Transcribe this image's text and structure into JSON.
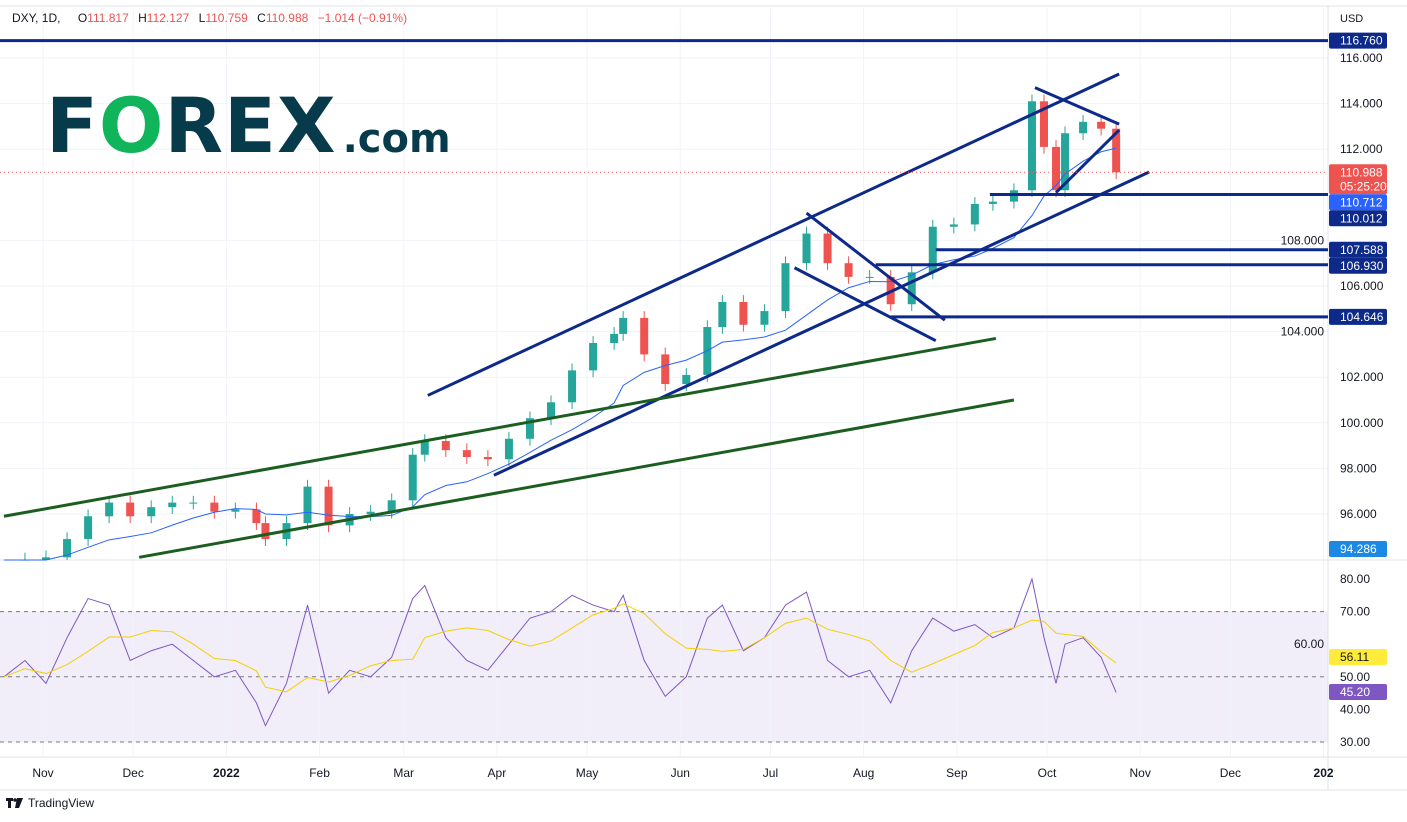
{
  "header": {
    "symbol": "DXY, 1D,",
    "open_label": "O",
    "open": "111.817",
    "high_label": "H",
    "high": "112.127",
    "low_label": "L",
    "low": "110.759",
    "close_label": "C",
    "close": "110.988",
    "change": "−1.014 (−0.91%)"
  },
  "logo": {
    "text_f": "F",
    "text_o": "O",
    "text_rex": "REX",
    "text_com": ".com"
  },
  "footer": {
    "brand": "TradingView"
  },
  "colors": {
    "up": "#26a69a",
    "down": "#ef5350",
    "line_blue": "#0d2a8a",
    "line_green": "#1b5e20",
    "ma": "#2962ff",
    "rsi": "#7e57c2",
    "rsi_ma": "#f5d000"
  },
  "chart_data": {
    "type": "candlestick",
    "currency_label": "USD",
    "price_ticks": [
      "116.000",
      "114.000",
      "112.000",
      "108.000",
      "106.000",
      "104.000",
      "102.000",
      "100.000",
      "98.000",
      "96.000"
    ],
    "price_ylim": [
      93.8,
      118.3
    ],
    "rsi_ticks": [
      "80.00",
      "70.00",
      "60.00",
      "50.00",
      "40.00",
      "30.00"
    ],
    "rsi_ylim": [
      28.9,
      80.5
    ],
    "x_ticks": [
      {
        "date": "2021-11-01",
        "label": "Nov"
      },
      {
        "date": "2021-12-01",
        "label": "Dec"
      },
      {
        "date": "2022-01-01",
        "label": "2022"
      },
      {
        "date": "2022-02-01",
        "label": "Feb"
      },
      {
        "date": "2022-03-01",
        "label": "Mar"
      },
      {
        "date": "2022-04-01",
        "label": "Apr"
      },
      {
        "date": "2022-05-01",
        "label": "May"
      },
      {
        "date": "2022-06-01",
        "label": "Jun"
      },
      {
        "date": "2022-07-01",
        "label": "Jul"
      },
      {
        "date": "2022-08-01",
        "label": "Aug"
      },
      {
        "date": "2022-09-01",
        "label": "Sep"
      },
      {
        "date": "2022-10-01",
        "label": "Oct"
      },
      {
        "date": "2022-11-01",
        "label": "Nov"
      },
      {
        "date": "2022-12-01",
        "label": "Dec"
      },
      {
        "date": "2023-01-01",
        "label": "202"
      }
    ],
    "series": [
      [
        "2021-10-19",
        93.8,
        50
      ],
      [
        "2021-10-26",
        94.0,
        55
      ],
      [
        "2021-11-02",
        94.1,
        48
      ],
      [
        "2021-11-09",
        94.9,
        62
      ],
      [
        "2021-11-16",
        95.9,
        74
      ],
      [
        "2021-11-23",
        96.5,
        72
      ],
      [
        "2021-11-30",
        95.9,
        55
      ],
      [
        "2021-12-07",
        96.3,
        58
      ],
      [
        "2021-12-14",
        96.5,
        60
      ],
      [
        "2021-12-21",
        96.5,
        55
      ],
      [
        "2021-12-28",
        96.1,
        50
      ],
      [
        "2022-01-04",
        96.2,
        52
      ],
      [
        "2022-01-11",
        95.6,
        42
      ],
      [
        "2022-01-14",
        94.9,
        35
      ],
      [
        "2022-01-21",
        95.6,
        48
      ],
      [
        "2022-01-28",
        97.2,
        72
      ],
      [
        "2022-02-04",
        95.5,
        45
      ],
      [
        "2022-02-11",
        96.0,
        52
      ],
      [
        "2022-02-18",
        96.1,
        50
      ],
      [
        "2022-02-25",
        96.6,
        56
      ],
      [
        "2022-03-04",
        98.6,
        74
      ],
      [
        "2022-03-08",
        99.2,
        78
      ],
      [
        "2022-03-15",
        98.8,
        62
      ],
      [
        "2022-03-22",
        98.5,
        55
      ],
      [
        "2022-03-29",
        98.4,
        52
      ],
      [
        "2022-04-05",
        99.3,
        60
      ],
      [
        "2022-04-12",
        100.2,
        68
      ],
      [
        "2022-04-19",
        100.9,
        70
      ],
      [
        "2022-04-26",
        102.3,
        75
      ],
      [
        "2022-05-03",
        103.5,
        72
      ],
      [
        "2022-05-10",
        103.9,
        70
      ],
      [
        "2022-05-13",
        104.6,
        75
      ],
      [
        "2022-05-20",
        103.0,
        55
      ],
      [
        "2022-05-27",
        101.7,
        44
      ],
      [
        "2022-06-03",
        102.1,
        50
      ],
      [
        "2022-06-10",
        104.2,
        68
      ],
      [
        "2022-06-15",
        105.3,
        72
      ],
      [
        "2022-06-22",
        104.3,
        58
      ],
      [
        "2022-06-29",
        104.9,
        62
      ],
      [
        "2022-07-06",
        107.0,
        72
      ],
      [
        "2022-07-13",
        108.3,
        76
      ],
      [
        "2022-07-20",
        107.0,
        55
      ],
      [
        "2022-07-27",
        106.4,
        50
      ],
      [
        "2022-08-03",
        106.4,
        52
      ],
      [
        "2022-08-10",
        105.2,
        42
      ],
      [
        "2022-08-17",
        106.6,
        58
      ],
      [
        "2022-08-24",
        108.6,
        68
      ],
      [
        "2022-08-31",
        108.7,
        64
      ],
      [
        "2022-09-07",
        109.6,
        66
      ],
      [
        "2022-09-13",
        109.7,
        62
      ],
      [
        "2022-09-20",
        110.2,
        65
      ],
      [
        "2022-09-26",
        114.1,
        80
      ],
      [
        "2022-09-30",
        112.1,
        62
      ],
      [
        "2022-10-04",
        110.2,
        48
      ],
      [
        "2022-10-07",
        112.7,
        60
      ],
      [
        "2022-10-13",
        113.2,
        62
      ],
      [
        "2022-10-19",
        112.9,
        56
      ],
      [
        "2022-10-24",
        110.988,
        45.2
      ]
    ],
    "horizontal_levels": [
      {
        "price": 116.76,
        "label": "116.760",
        "from": "2021-10-15"
      },
      {
        "price": 110.012,
        "label": "110.012",
        "from": "2022-09-12"
      },
      {
        "price": 107.588,
        "label": "107.588",
        "from": "2022-08-25"
      },
      {
        "price": 106.93,
        "label": "106.930",
        "from": "2022-08-05"
      },
      {
        "price": 104.646,
        "label": "104.646",
        "from": "2022-08-10"
      }
    ],
    "trendlines": [
      {
        "color": "blue",
        "p1": [
          "2022-03-09",
          101.2
        ],
        "p2": [
          "2022-10-25",
          115.3
        ]
      },
      {
        "color": "blue",
        "p1": [
          "2022-03-31",
          97.7
        ],
        "p2": [
          "2022-11-04",
          111.0
        ]
      },
      {
        "color": "green",
        "p1": [
          "2021-10-19",
          95.9
        ],
        "p2": [
          "2022-09-14",
          103.7
        ]
      },
      {
        "color": "green",
        "p1": [
          "2021-12-03",
          94.1
        ],
        "p2": [
          "2022-09-20",
          101.0
        ]
      },
      {
        "color": "blue",
        "p1": [
          "2022-07-13",
          109.2
        ],
        "p2": [
          "2022-08-28",
          104.5
        ]
      },
      {
        "color": "blue",
        "p1": [
          "2022-07-09",
          106.8
        ],
        "p2": [
          "2022-08-25",
          103.6
        ]
      },
      {
        "color": "blue",
        "p1": [
          "2022-09-27",
          114.7
        ],
        "p2": [
          "2022-10-25",
          113.1
        ]
      },
      {
        "color": "blue",
        "p1": [
          "2022-10-04",
          110.1
        ],
        "p2": [
          "2022-10-25",
          112.84
        ]
      }
    ],
    "labels": {
      "last_price": "110.988",
      "countdown": "05:25:20",
      "ma_value": "110.712",
      "low_marker": "94.286",
      "rsi_ma_value": "56.11",
      "rsi_value": "45.20"
    }
  }
}
